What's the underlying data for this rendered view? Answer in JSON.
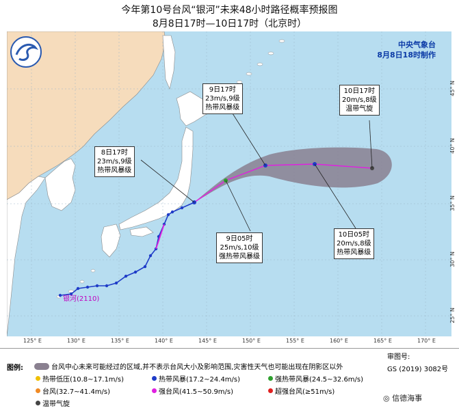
{
  "title": "今年第10号台风“银河”未来48小时路径概率预报图",
  "subtitle": "8月8日17时—10日17时（北京时）",
  "agency": {
    "name": "中央气象台",
    "issued": "8月8日18时制作"
  },
  "storm_label": "银河",
  "storm_code": "(2110)",
  "callouts": [
    {
      "id": "c1",
      "time": "8日17时",
      "wind": "23m/s,9级",
      "level": "热带风暴级"
    },
    {
      "id": "c2",
      "time": "9日17时",
      "wind": "23m/s,9级",
      "level": "热带风暴级"
    },
    {
      "id": "c3",
      "time": "9日05时",
      "wind": "25m/s,10级",
      "level": "强热带风暴级"
    },
    {
      "id": "c4",
      "time": "10日05时",
      "wind": "20m/s,8级",
      "level": "热带风暴级"
    },
    {
      "id": "c5",
      "time": "10日17时",
      "wind": "20m/s,8级",
      "level": "温带气旋"
    }
  ],
  "lon_labels": [
    "125° E",
    "130° E",
    "135° E",
    "140° E",
    "145° E",
    "150° E",
    "155° E",
    "160° E",
    "165° E",
    "170° E"
  ],
  "lat_labels": [
    "45° N",
    "40° N",
    "35° N",
    "30° N",
    "25° N"
  ],
  "legend": {
    "title": "图例:",
    "shade_text": "台风中心未来可能经过的区域,并不表示台风大小及影响范围,灾害性天气也可能出现在阴影区以外",
    "items": [
      {
        "label": "热带低压(10.8~17.1m/s)",
        "color": "#f0c000"
      },
      {
        "label": "热带风暴(17.2~24.4m/s)",
        "color": "#1f3cc8"
      },
      {
        "label": "强热带风暴(24.5~32.6m/s)",
        "color": "#2ea02e"
      },
      {
        "label": "台风(32.7~41.4m/s)",
        "color": "#f08a24"
      },
      {
        "label": "强台风(41.5~50.9m/s)",
        "color": "#e020e0"
      },
      {
        "label": "超强台风(≥51m/s)",
        "color": "#e02020"
      },
      {
        "label": "温带气旋",
        "color": "#444444"
      }
    ]
  },
  "review_label": "审图号:",
  "review_code": "GS (2019) 3082号",
  "watermark": "信德海事"
}
